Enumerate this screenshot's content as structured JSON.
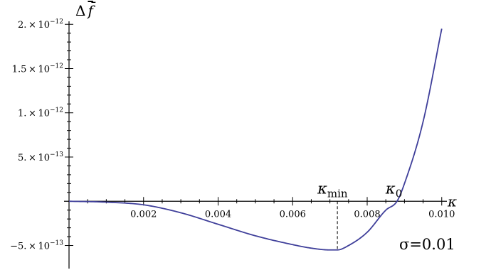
{
  "chart_data": {
    "type": "line",
    "xlabel": "κ",
    "ylabel": "Δf̄",
    "xlim": [
      0,
      0.0101
    ],
    "ylim": [
      -5.6e-13,
      2.05e-12
    ],
    "x_ticks": [
      {
        "value": 0.002,
        "label": "0.002"
      },
      {
        "value": 0.004,
        "label": "0.004"
      },
      {
        "value": 0.006,
        "label": "0.006"
      },
      {
        "value": 0.008,
        "label": "0.008"
      },
      {
        "value": 0.01,
        "label": "0.010"
      }
    ],
    "y_ticks": [
      {
        "value": -5e-13,
        "mant": "−5.",
        "exp": "−13"
      },
      {
        "value": 5e-13,
        "mant": "5.",
        "exp": "−13"
      },
      {
        "value": 1e-12,
        "mant": "1.",
        "exp": "−12"
      },
      {
        "value": 1.5e-12,
        "mant": "1.5",
        "exp": "−12"
      },
      {
        "value": 2e-12,
        "mant": "2.",
        "exp": "−12"
      }
    ],
    "series": [
      {
        "color": "#3f3f9a",
        "x": [
          0,
          0.001,
          0.002,
          0.003,
          0.004,
          0.005,
          0.006,
          0.0065,
          0.007,
          0.0072,
          0.0075,
          0.008,
          0.0085,
          0.0088,
          0.009,
          0.0095,
          0.01
        ],
        "y": [
          0,
          -1e-14,
          -4e-14,
          -1.3e-13,
          -2.6e-13,
          -3.9e-13,
          -4.9e-13,
          -5.3e-13,
          -5.5e-13,
          -5.5e-13,
          -5e-13,
          -3.5e-13,
          -1e-13,
          0,
          2e-13,
          9e-13,
          1.95e-12
        ]
      }
    ],
    "annotations": {
      "kappa_min": {
        "value": 0.0072,
        "label_main": "κ",
        "label_sub": "min"
      },
      "kappa_0": {
        "value": 0.0088,
        "label_main": "κ",
        "label_sub": "0"
      },
      "sigma_label": "σ=0.01"
    },
    "grid": false
  }
}
